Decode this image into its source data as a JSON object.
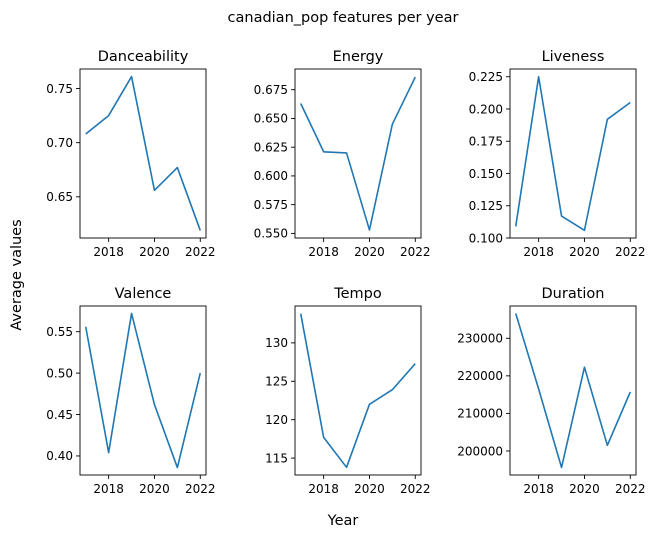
{
  "figure": {
    "title": "canadian_pop features per year",
    "xlabel": "Year",
    "ylabel": "Average values",
    "line_color": "#1f77b4"
  },
  "chart_data": [
    {
      "type": "line",
      "title": "Danceability",
      "x": [
        2017,
        2018,
        2019,
        2020,
        2021,
        2022
      ],
      "y": [
        0.708,
        0.725,
        0.761,
        0.656,
        0.677,
        0.619
      ],
      "xlim": [
        2016.75,
        2022.25
      ],
      "ylim": [
        0.612,
        0.768
      ],
      "xticks": [
        2018,
        2020,
        2022
      ],
      "yticks": [
        0.65,
        0.7,
        0.75
      ],
      "ytick_labels": [
        "0.65",
        "0.70",
        "0.75"
      ]
    },
    {
      "type": "line",
      "title": "Energy",
      "x": [
        2017,
        2018,
        2019,
        2020,
        2021,
        2022
      ],
      "y": [
        0.663,
        0.621,
        0.62,
        0.553,
        0.645,
        0.686
      ],
      "xlim": [
        2016.75,
        2022.25
      ],
      "ylim": [
        0.546,
        0.693
      ],
      "xticks": [
        2018,
        2020,
        2022
      ],
      "yticks": [
        0.55,
        0.575,
        0.6,
        0.625,
        0.65,
        0.675
      ],
      "ytick_labels": [
        "0.550",
        "0.575",
        "0.600",
        "0.625",
        "0.650",
        "0.675"
      ]
    },
    {
      "type": "line",
      "title": "Liveness",
      "x": [
        2017,
        2018,
        2019,
        2020,
        2021,
        2022
      ],
      "y": [
        0.109,
        0.225,
        0.117,
        0.106,
        0.192,
        0.205
      ],
      "xlim": [
        2016.75,
        2022.25
      ],
      "ylim": [
        0.1,
        0.231
      ],
      "xticks": [
        2018,
        2020,
        2022
      ],
      "yticks": [
        0.1,
        0.125,
        0.15,
        0.175,
        0.2,
        0.225
      ],
      "ytick_labels": [
        "0.100",
        "0.125",
        "0.150",
        "0.175",
        "0.200",
        "0.225"
      ]
    },
    {
      "type": "line",
      "title": "Valence",
      "x": [
        2017,
        2018,
        2019,
        2020,
        2021,
        2022
      ],
      "y": [
        0.556,
        0.404,
        0.572,
        0.462,
        0.386,
        0.5
      ],
      "xlim": [
        2016.75,
        2022.25
      ],
      "ylim": [
        0.377,
        0.581
      ],
      "xticks": [
        2018,
        2020,
        2022
      ],
      "yticks": [
        0.4,
        0.45,
        0.5,
        0.55
      ],
      "ytick_labels": [
        "0.40",
        "0.45",
        "0.50",
        "0.55"
      ]
    },
    {
      "type": "line",
      "title": "Tempo",
      "x": [
        2017,
        2018,
        2019,
        2020,
        2021,
        2022
      ],
      "y": [
        133.8,
        117.7,
        113.8,
        122.0,
        123.9,
        127.3
      ],
      "xlim": [
        2016.75,
        2022.25
      ],
      "ylim": [
        112.8,
        134.8
      ],
      "xticks": [
        2018,
        2020,
        2022
      ],
      "yticks": [
        115,
        120,
        125,
        130
      ],
      "ytick_labels": [
        "115",
        "120",
        "125",
        "130"
      ]
    },
    {
      "type": "line",
      "title": "Duration",
      "x": [
        2017,
        2018,
        2019,
        2020,
        2021,
        2022
      ],
      "y": [
        236600,
        216500,
        195600,
        222300,
        201500,
        215700
      ],
      "xlim": [
        2016.75,
        2022.25
      ],
      "ylim": [
        193600,
        238600
      ],
      "xticks": [
        2018,
        2020,
        2022
      ],
      "yticks": [
        200000,
        210000,
        220000,
        230000
      ],
      "ytick_labels": [
        "200000",
        "210000",
        "220000",
        "230000"
      ]
    }
  ]
}
